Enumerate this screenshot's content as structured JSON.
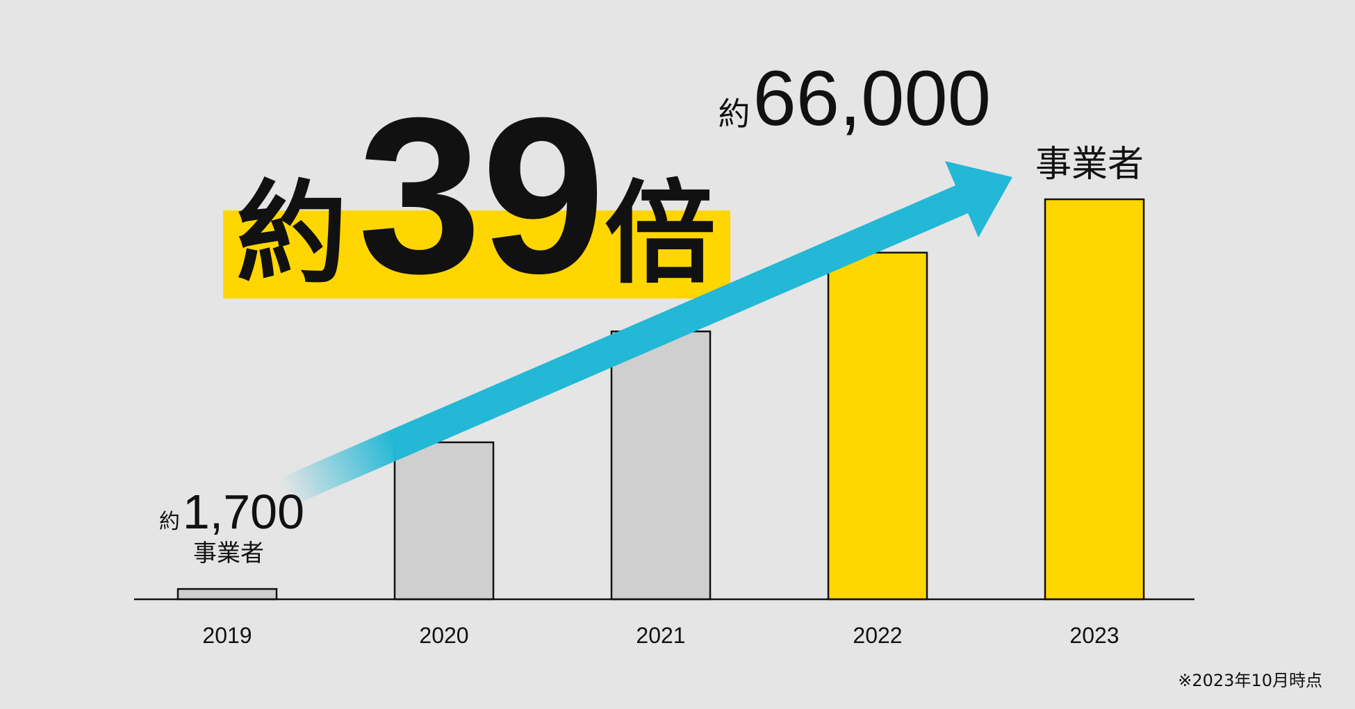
{
  "chart_data": {
    "type": "bar",
    "headline": {
      "prefix": "約",
      "value": 39,
      "suffix": "倍"
    },
    "categories": [
      "2019",
      "2020",
      "2021",
      "2022",
      "2023"
    ],
    "values": [
      1700,
      25900,
      44200,
      57200,
      66000
    ],
    "value_labels": [
      "1,700",
      null,
      null,
      null,
      "66,000"
    ],
    "value_prefix": "約",
    "value_unit": "事業者",
    "colors": [
      "#cfcfcf",
      "#cfcfcf",
      "#cfcfcf",
      "#ffd600",
      "#ffd600"
    ],
    "footnote": "※2023年10月時点"
  }
}
